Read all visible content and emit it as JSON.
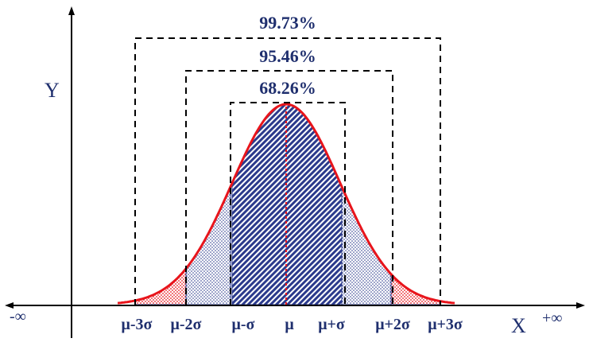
{
  "axes": {
    "y_label": "Y",
    "x_label": "X",
    "neg_inf": "-∞",
    "pos_inf": "+∞"
  },
  "intervals": {
    "one_sigma": "68.26%",
    "two_sigma": "95.46%",
    "three_sigma": "99.73%"
  },
  "ticks": {
    "mu_minus_3s": "μ-3σ",
    "mu_minus_2s": "μ-2σ",
    "mu_minus_s": "μ-σ",
    "mu": "μ",
    "mu_plus_s": "μ+σ",
    "mu_plus_2s": "μ+2σ",
    "mu_plus_3s": "μ+3σ"
  },
  "colors": {
    "curve": "#e8141b",
    "axis": "#000000",
    "bracket": "#000000",
    "text": "#1f2f6e",
    "band_one_sigma": "#2b3a8c",
    "band_two_sigma": "#2b3a8c",
    "band_three_sigma": "#e8141b",
    "mean_line": "#e8141b"
  }
}
